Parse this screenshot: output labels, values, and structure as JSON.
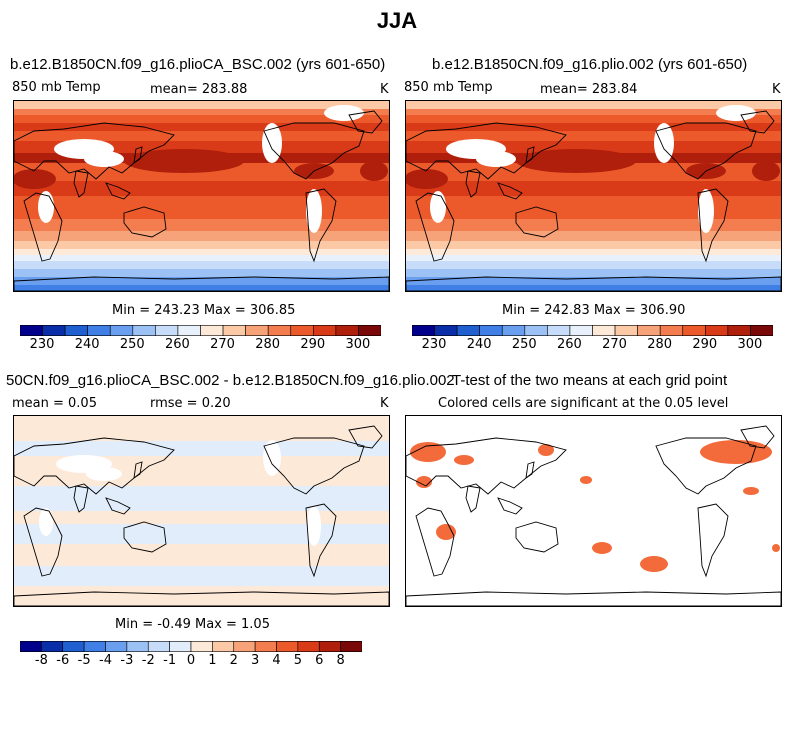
{
  "title": "JJA",
  "panels": [
    {
      "title": "b.e12.B1850CN.f09_g16.plioCA_BSC.002 (yrs 601-650)",
      "variable": "850 mb Temp",
      "mean": "mean= 283.88",
      "units": "K",
      "minmax": "Min = 243.23 Max = 306.85"
    },
    {
      "title": "b.e12.B1850CN.f09_g16.plio.002 (yrs 601-650)",
      "variable": "850 mb Temp",
      "mean": "mean= 283.84",
      "units": "K",
      "minmax": "Min = 242.83 Max = 306.90"
    },
    {
      "title": "50CN.f09_g16.plioCA_BSC.002 - b.e12.B1850CN.f09_g16.plio.002",
      "mean": "mean =    0.05",
      "rmse": "rmse =    0.20",
      "units": "K",
      "minmax": "Min =   -0.49 Max =    1.05"
    },
    {
      "title": "T-test of the two means at each grid point",
      "subtitle": "Colored cells are significant at the 0.05 level"
    }
  ],
  "colorbar_temp": {
    "ticks": [
      "230",
      "240",
      "250",
      "260",
      "270",
      "280",
      "290",
      "300"
    ],
    "colors": [
      "#00008c",
      "#0a2ea8",
      "#1f5fd0",
      "#3f7fe6",
      "#6a9ff0",
      "#9cc1f5",
      "#c7dcf8",
      "#e8f1fb",
      "#fde9d8",
      "#fbc9a6",
      "#f7a379",
      "#f37d4f",
      "#ec5a2c",
      "#d93a18",
      "#b01f0c",
      "#7a0808"
    ]
  },
  "colorbar_diff": {
    "ticks": [
      "-8",
      "-6",
      "-5",
      "-4",
      "-3",
      "-2",
      "-1",
      "0",
      "1",
      "2",
      "3",
      "4",
      "5",
      "6",
      "8"
    ],
    "colors": [
      "#00008c",
      "#0a2ea8",
      "#1f5fd0",
      "#3f7fe6",
      "#6a9ff0",
      "#9cc1f5",
      "#c7dcf8",
      "#e2edfb",
      "#fde9d8",
      "#fbc9a6",
      "#f7a379",
      "#f37d4f",
      "#ec5a2c",
      "#d93a18",
      "#b01f0c",
      "#7a0808"
    ]
  },
  "colors": {
    "ttest_fill": "#f36b3a"
  }
}
